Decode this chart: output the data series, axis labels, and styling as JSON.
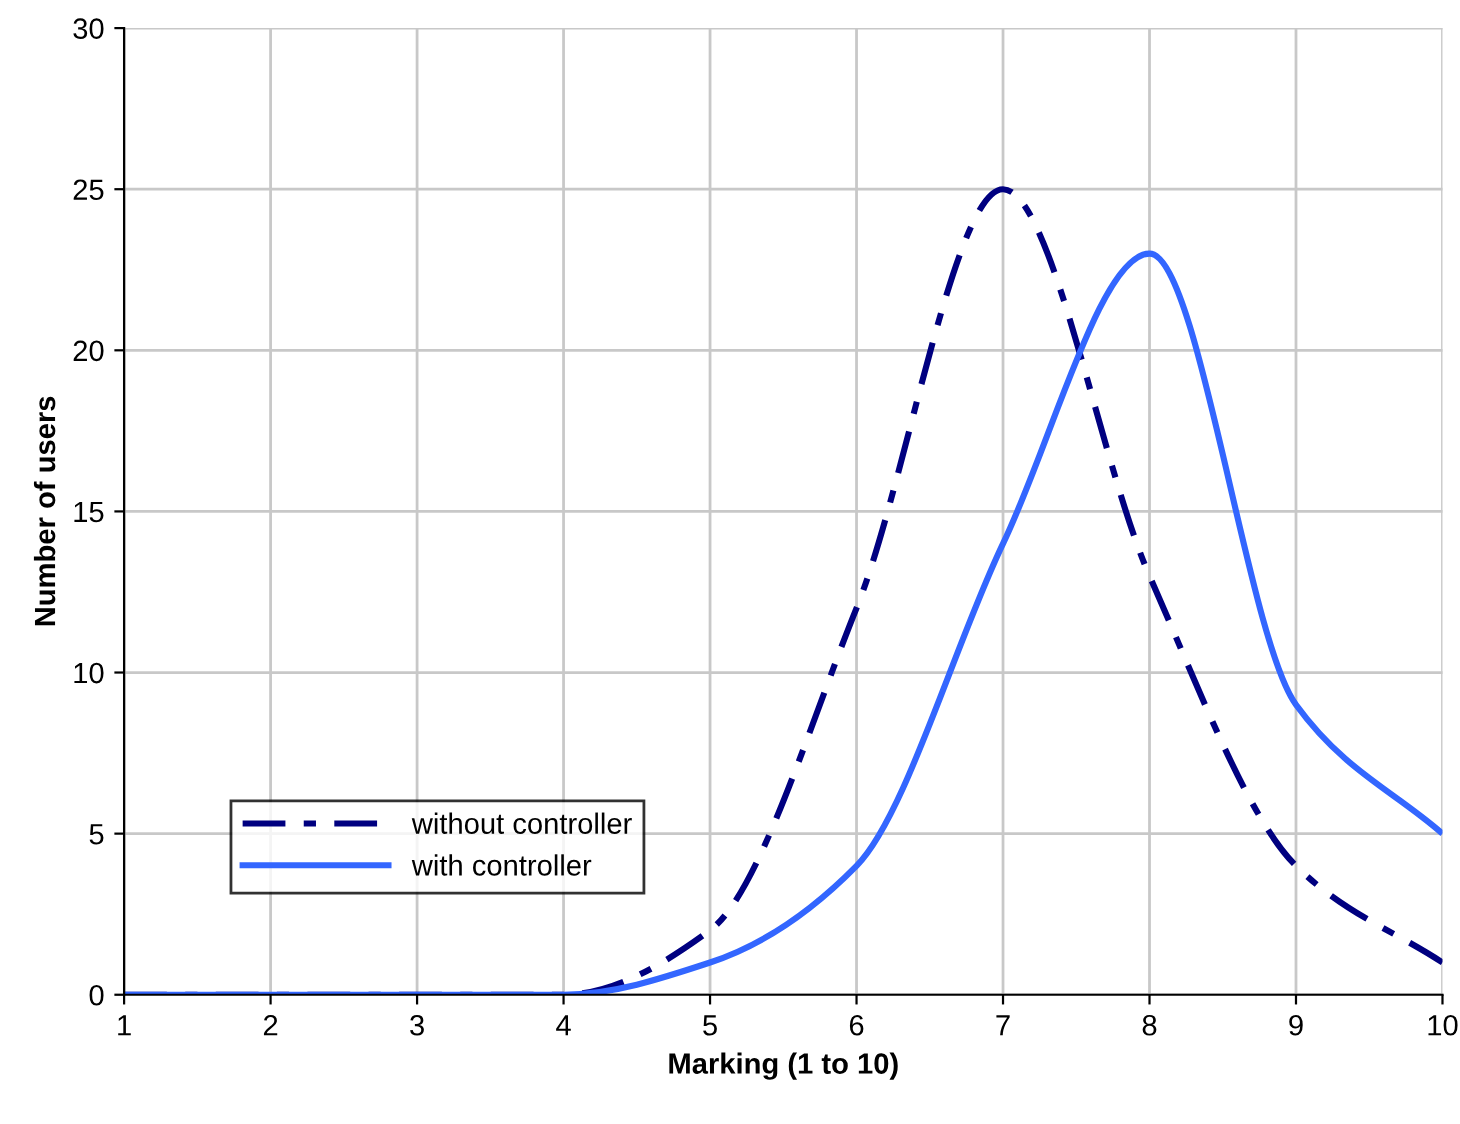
{
  "chart_data": {
    "type": "line",
    "xlabel": "Marking (1 to 10)",
    "ylabel": "Number of users",
    "x": [
      1,
      2,
      3,
      4,
      5,
      6,
      7,
      8,
      9,
      10
    ],
    "series": [
      {
        "name": "without controller",
        "color": "#000080",
        "line_style": "dashed",
        "values": [
          0,
          0,
          0,
          0,
          2,
          12,
          25,
          13,
          4,
          1
        ]
      },
      {
        "name": "with controller",
        "color": "#3366ff",
        "line_style": "solid",
        "values": [
          0,
          0,
          0,
          0,
          1,
          4,
          14,
          23,
          9,
          5
        ]
      }
    ],
    "xlim": [
      1,
      10
    ],
    "ylim": [
      0,
      30
    ],
    "xticks": [
      1,
      2,
      3,
      4,
      5,
      6,
      7,
      8,
      9,
      10
    ],
    "yticks": [
      0,
      5,
      10,
      15,
      20,
      25,
      30
    ],
    "grid": true,
    "legend": "bottom left",
    "marker": "none"
  }
}
